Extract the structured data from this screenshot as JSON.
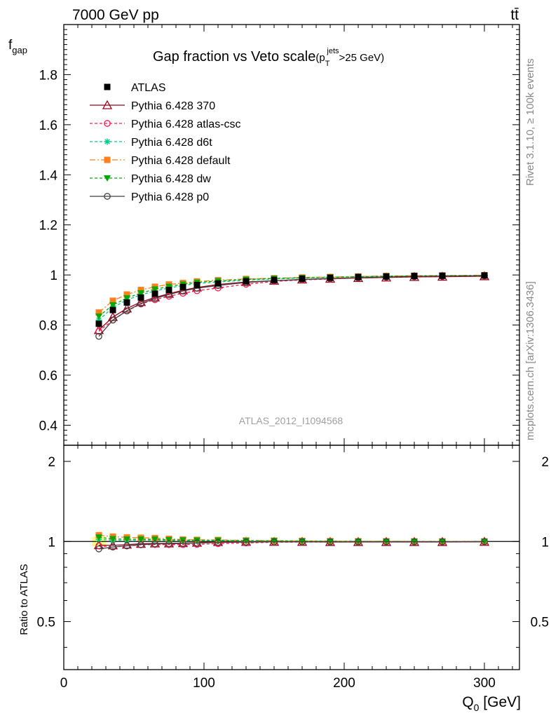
{
  "header": {
    "left": "7000 GeV pp",
    "right": "tt̄"
  },
  "side": {
    "rivet": "Rivet 3.1.10, ≥ 100k events",
    "mcplots": "mcplots.cern.ch [arXiv:1306.3436]"
  },
  "chart_data": {
    "type": "line",
    "title": "Gap fraction vs Veto scale",
    "title_suffix": "(p",
    "title_sub": "T",
    "title_sup": "jets",
    "title_tail": ">25 GeV)",
    "analysis_label": "ATLAS_2012_I1094568",
    "x": [
      25,
      35,
      45,
      55,
      65,
      75,
      85,
      95,
      110,
      130,
      150,
      170,
      190,
      210,
      230,
      250,
      270,
      300
    ],
    "xlim": [
      0,
      325
    ],
    "xlabel": "Q",
    "xlabel_sub": "0",
    "xlabel_tail": " [GeV]",
    "xticks": [
      "0",
      "100",
      "200",
      "300"
    ],
    "main": {
      "ylabel": "f",
      "ylabel_sub": "gap",
      "ylim": [
        0.32,
        2.0
      ],
      "yticks": [
        "0.4",
        "0.6",
        "0.8",
        "1",
        "1.2",
        "1.4",
        "1.6",
        "1.8"
      ]
    },
    "ratio": {
      "ylabel": "Ratio to ATLAS",
      "ylim": [
        0.33,
        2.3
      ],
      "yticks": [
        "0.5",
        "1",
        "2"
      ],
      "log": true
    },
    "series": [
      {
        "name": "ATLAS",
        "color": "#000000",
        "marker": "square",
        "dash": "",
        "values": [
          0.805,
          0.86,
          0.89,
          0.91,
          0.925,
          0.94,
          0.952,
          0.96,
          0.966,
          0.975,
          0.98,
          0.985,
          0.989,
          0.992,
          0.994,
          0.996,
          0.997,
          0.998
        ]
      },
      {
        "name": "Pythia 6.428 370",
        "color": "#99001a",
        "marker": "triangle-open",
        "dash": "",
        "values": [
          0.78,
          0.832,
          0.866,
          0.892,
          0.91,
          0.925,
          0.939,
          0.95,
          0.962,
          0.972,
          0.977,
          0.982,
          0.985,
          0.988,
          0.99,
          0.992,
          0.993,
          0.995
        ]
      },
      {
        "name": "Pythia 6.428 atlas-csc",
        "color": "#ff1a4d",
        "marker": "circle-open",
        "dash": "4,3",
        "values": [
          0.775,
          0.82,
          0.856,
          0.884,
          0.901,
          0.915,
          0.927,
          0.937,
          0.948,
          0.963,
          0.974,
          0.98,
          0.984,
          0.988,
          0.991,
          0.993,
          0.994,
          0.996
        ]
      },
      {
        "name": "Pythia 6.428 d6t",
        "color": "#00cc88",
        "marker": "star",
        "dash": "4,3",
        "values": [
          0.82,
          0.87,
          0.9,
          0.921,
          0.936,
          0.948,
          0.958,
          0.966,
          0.972,
          0.979,
          0.984,
          0.988,
          0.991,
          0.993,
          0.995,
          0.996,
          0.997,
          0.998
        ]
      },
      {
        "name": "Pythia 6.428 default",
        "color": "#ff7f1a",
        "marker": "square",
        "dash": "8,3,2,3",
        "values": [
          0.85,
          0.897,
          0.922,
          0.94,
          0.953,
          0.962,
          0.968,
          0.974,
          0.979,
          0.984,
          0.987,
          0.99,
          0.992,
          0.994,
          0.996,
          0.997,
          0.998,
          0.999
        ]
      },
      {
        "name": "Pythia 6.428 dw",
        "color": "#00aa00",
        "marker": "triangle-down",
        "dash": "4,3",
        "values": [
          0.835,
          0.88,
          0.908,
          0.928,
          0.943,
          0.954,
          0.963,
          0.97,
          0.976,
          0.982,
          0.986,
          0.989,
          0.991,
          0.993,
          0.995,
          0.996,
          0.997,
          0.998
        ]
      },
      {
        "name": "Pythia 6.428 p0",
        "color": "#404040",
        "marker": "circle-open",
        "dash": "",
        "values": [
          0.755,
          0.82,
          0.857,
          0.886,
          0.906,
          0.922,
          0.936,
          0.947,
          0.958,
          0.97,
          0.977,
          0.982,
          0.986,
          0.989,
          0.992,
          0.994,
          0.995,
          0.997
        ]
      }
    ]
  }
}
